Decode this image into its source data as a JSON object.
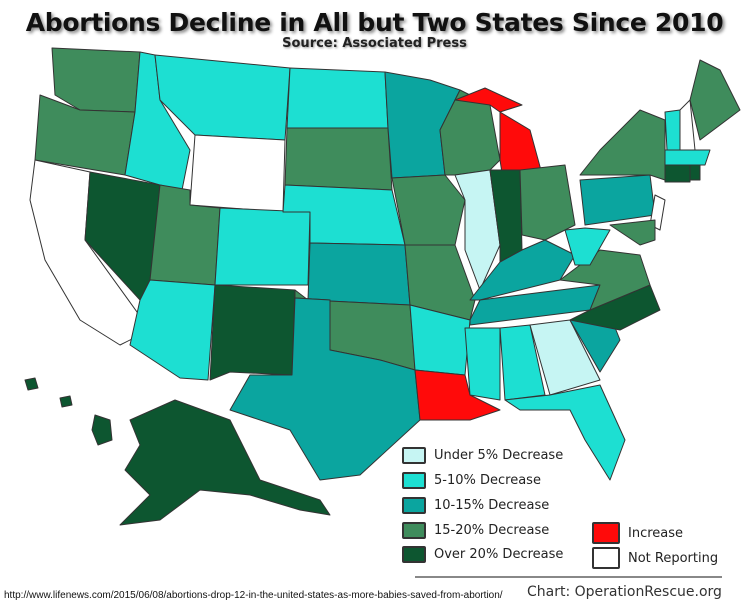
{
  "title": "Abortions Decline in All but Two States Since 2010",
  "subtitle": "Source: Associated Press",
  "legend": [
    {
      "key": "u5",
      "label": "Under 5% Decrease",
      "color": "#c6f5f3"
    },
    {
      "key": "d5",
      "label": "5-10% Decrease",
      "color": "#1ddfd2"
    },
    {
      "key": "d10",
      "label": "10-15% Decrease",
      "color": "#0ba59f"
    },
    {
      "key": "d15",
      "label": "15-20% Decrease",
      "color": "#3f8c5c"
    },
    {
      "key": "d20",
      "label": "Over 20% Decrease",
      "color": "#0d5630"
    },
    {
      "key": "inc",
      "label": "Increase",
      "color": "#ff0a0a"
    },
    {
      "key": "nr",
      "label": "Not Reporting",
      "color": "#ffffff"
    }
  ],
  "states": {
    "WA": "d15",
    "OR": "d15",
    "CA": "nr",
    "NV": "d20",
    "ID": "d5",
    "MT": "d5",
    "WY": "nr",
    "UT": "d15",
    "AZ": "d5",
    "CO": "d5",
    "NM": "d20",
    "ND": "d5",
    "SD": "d15",
    "NE": "d5",
    "KS": "d10",
    "OK": "d15",
    "TX": "d10",
    "MN": "d10",
    "IA": "d15",
    "MO": "d15",
    "AR": "d5",
    "LA": "inc",
    "WI": "d15",
    "IL": "u5",
    "MI": "inc",
    "MIU": "inc",
    "IN": "d20",
    "OH": "d15",
    "KY": "d10",
    "TN": "d10",
    "MS": "d5",
    "AL": "d5",
    "GA": "u5",
    "FL": "d5",
    "SC": "d10",
    "NC": "d20",
    "VA": "d15",
    "WV": "d5",
    "PA": "d10",
    "NY": "d15",
    "NJ": "nr",
    "MD": "d15",
    "VT": "d5",
    "NH": "nr",
    "ME": "d15",
    "MA": "d5",
    "CT": "d20",
    "RI": "d20",
    "AK": "d20",
    "HI1": "d20",
    "HI2": "d20",
    "HI3": "d20"
  },
  "footer": {
    "url": "http://www.lifenews.com/2015/06/08/abortions-drop-12-in-the-united-states-as-more-babies-saved-from-abortion/",
    "credit": "Chart: OperationRescue.org"
  }
}
